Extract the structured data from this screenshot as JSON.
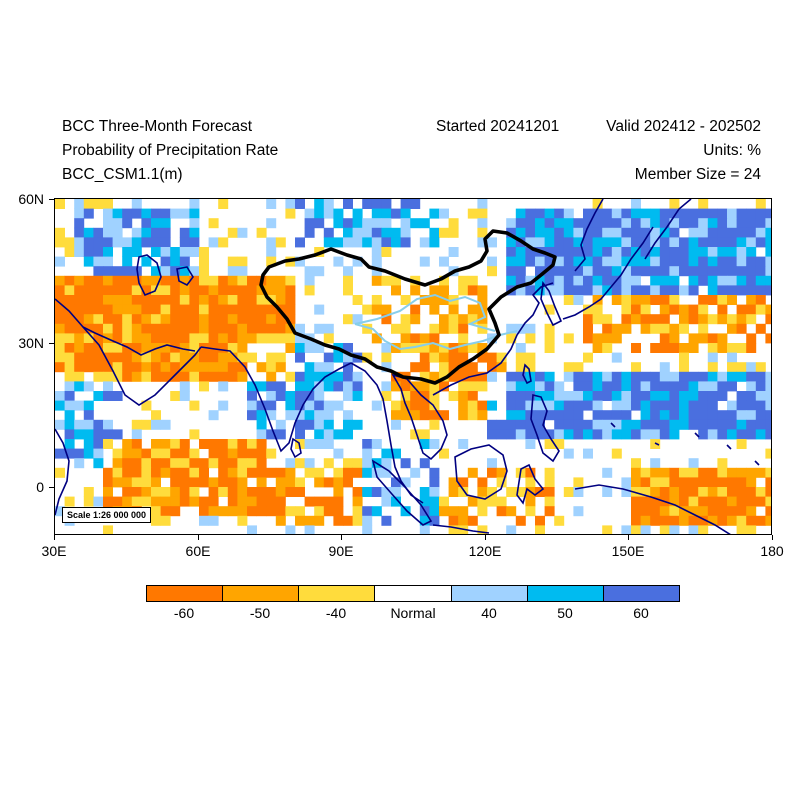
{
  "header": {
    "title": "BCC Three-Month Forecast",
    "subtitle": "Probability of Precipitation Rate",
    "model": "BCC_CSM1.1(m)",
    "started": "Started 20241201",
    "valid": "Valid 202412 - 202502",
    "units": "Units: %",
    "member_size": "Member Size = 24"
  },
  "map": {
    "lat_labels": [
      "60N",
      "30N",
      "0"
    ],
    "lon_labels": [
      "30E",
      "60E",
      "90E",
      "120E",
      "150E",
      "180"
    ],
    "lon_range": [
      30,
      180
    ],
    "lat_range": [
      -10,
      60
    ],
    "scale_label": "Scale 1:26 000 000"
  },
  "legend": {
    "labels": [
      "-60",
      "-50",
      "-40",
      "Normal",
      "40",
      "50",
      "60"
    ],
    "colors": [
      "#ff7800",
      "#ffa500",
      "#ffdc3c",
      "#ffffff",
      "#a0d2ff",
      "#00bbf0",
      "#4a6fdf"
    ]
  },
  "colors": {
    "coastline": "#000080",
    "china_border": "#000000",
    "rivers": "#87ceeb"
  }
}
